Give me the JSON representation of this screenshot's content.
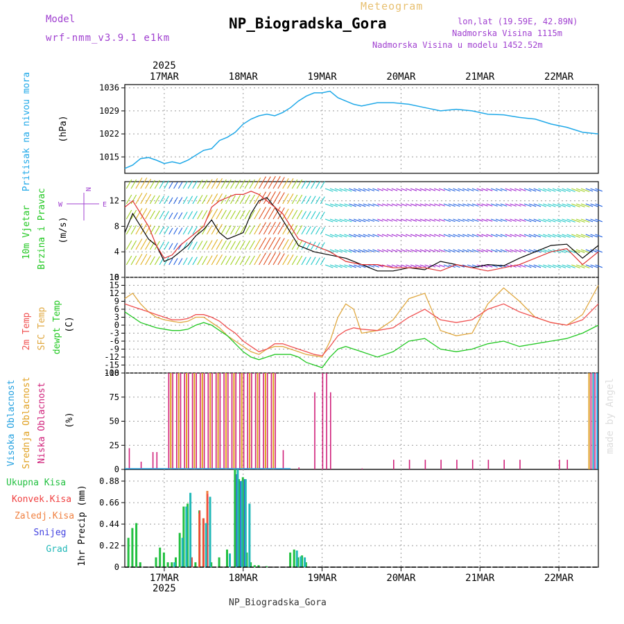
{
  "header": {
    "subtitle": "Meteogram",
    "title": "NP_Biogradska_Gora",
    "model_label": "Model",
    "model_name": "wrf-nmm_v3.9.1 e1km",
    "coords": "lon,lat (19.59E, 42.89N)",
    "elevation": "Nadmorska Visina 1115m",
    "model_elevation": "Nadmorska Visina u modelu 1452.52m",
    "footer": "NP_Biogradska_Gora",
    "watermark": "made by Angel",
    "year": "2025",
    "dates": [
      "17MAR",
      "18MAR",
      "19MAR",
      "20MAR",
      "21MAR",
      "22MAR"
    ]
  },
  "panels": {
    "pressure": {
      "ylabel": "Pritisak na nivou mora",
      "unit": "(hPa)"
    },
    "wind": {
      "ylabel1": "10m Vjetar",
      "ylabel2": "Brzina i Pravac",
      "unit": "(m/s)",
      "compass": "N",
      "compass_e": "E",
      "compass_w": "W"
    },
    "temp": {
      "label1": "2m Temp",
      "label2": "SFC Temp",
      "label3": "dewpt Temp",
      "unit": "(C)"
    },
    "cloud": {
      "label1": "Visoka Oblacnost",
      "label2": "Srednja Oblacnost",
      "label3": "Niska Oblacnost",
      "unit": "(%)"
    },
    "precip": {
      "legend": [
        "Ukupna Kisa",
        "Konvek.Kisa",
        "Zaledj.Kisa",
        "Snijeg",
        "Grad"
      ],
      "ylabel": "1hr Precip (mm)"
    }
  },
  "colors": {
    "pressure": "#1ea8e8",
    "t2m": "#f05050",
    "sfc": "#e0a840",
    "dew": "#22c822",
    "high_cloud": "#22a0e0",
    "mid_cloud": "#e0a020",
    "low_cloud": "#d0207a",
    "total_rain": "#22c040",
    "conv_rain": "#f04040",
    "frz_rain": "#f08040",
    "snow": "#4040e0",
    "graupel": "#22b8b8",
    "speed_line": "#000000",
    "gust_line": "#e03030"
  },
  "chart_data": [
    {
      "type": "line",
      "name": "pressure",
      "x_unit": "days since 16MAR 12:00 UTC",
      "ylim": [
        1010,
        1037
      ],
      "yticks": [
        "1015",
        "1022",
        "1029",
        "1036"
      ],
      "x": [
        0,
        0.1,
        0.2,
        0.3,
        0.4,
        0.5,
        0.6,
        0.7,
        0.8,
        0.9,
        1.0,
        1.1,
        1.2,
        1.3,
        1.4,
        1.5,
        1.6,
        1.7,
        1.8,
        1.9,
        2.0,
        2.1,
        2.2,
        2.3,
        2.4,
        2.5,
        2.6,
        2.7,
        2.8,
        2.9,
        3.0,
        3.2,
        3.4,
        3.6,
        3.8,
        4.0,
        4.2,
        4.4,
        4.6,
        4.8,
        5.0,
        5.2,
        5.4,
        5.6,
        5.8,
        6.0
      ],
      "values": [
        1011.5,
        1012.5,
        1014.5,
        1014.8,
        1014,
        1013,
        1013.5,
        1013,
        1014,
        1015.5,
        1017,
        1017.5,
        1020,
        1021,
        1022.5,
        1025,
        1026.5,
        1027.5,
        1028,
        1027.5,
        1028.5,
        1030,
        1032,
        1033.5,
        1034.5,
        1034.5,
        1035,
        1033,
        1032,
        1031,
        1030.5,
        1031.5,
        1031.5,
        1031,
        1030,
        1029,
        1029.5,
        1029,
        1028,
        1027.8,
        1027,
        1026.5,
        1025,
        1024,
        1022.5,
        1022
      ]
    },
    {
      "type": "line",
      "name": "wind",
      "ylim": [
        0,
        15
      ],
      "yticks": [
        "0",
        "4",
        "8",
        "12"
      ],
      "series": [
        {
          "name": "speed",
          "x": [
            0,
            0.1,
            0.2,
            0.3,
            0.4,
            0.5,
            0.6,
            0.7,
            0.8,
            0.9,
            1.0,
            1.1,
            1.2,
            1.3,
            1.4,
            1.5,
            1.6,
            1.7,
            1.8,
            1.9,
            2.0,
            2.1,
            2.2,
            2.4,
            2.6,
            2.8,
            3.0,
            3.2,
            3.4,
            3.6,
            3.8,
            4.0,
            4.2,
            4.4,
            4.6,
            4.8,
            5.0,
            5.2,
            5.4,
            5.6,
            5.8,
            6.0
          ],
          "values": [
            7,
            10,
            8,
            6,
            5,
            2.5,
            3,
            4,
            5,
            6.5,
            7.5,
            9,
            7,
            6,
            6.5,
            7,
            10,
            12,
            12.5,
            11,
            9,
            7,
            5,
            4,
            3.5,
            3,
            2,
            1,
            1,
            1.5,
            1.2,
            2.5,
            2,
            1.5,
            2,
            1.8,
            3,
            4,
            5,
            5.2,
            3,
            5
          ]
        },
        {
          "name": "gust",
          "x": [
            0,
            0.1,
            0.2,
            0.3,
            0.4,
            0.5,
            0.6,
            0.7,
            0.8,
            0.9,
            1.0,
            1.1,
            1.2,
            1.3,
            1.4,
            1.5,
            1.6,
            1.7,
            1.8,
            1.9,
            2.0,
            2.1,
            2.2,
            2.4,
            2.6,
            2.8,
            3.0,
            3.2,
            3.4,
            3.6,
            3.8,
            4.0,
            4.2,
            4.4,
            4.6,
            4.8,
            5.0,
            5.2,
            5.4,
            5.6,
            5.8,
            6.0
          ],
          "values": [
            11,
            12,
            10,
            8,
            5,
            3,
            3.5,
            5,
            6,
            7,
            8,
            11,
            12,
            12.5,
            13,
            13,
            13.5,
            13,
            12,
            11,
            10,
            8,
            6,
            5,
            4,
            2.5,
            2,
            2,
            1.5,
            1.5,
            1.5,
            1,
            2,
            1.5,
            1,
            1.5,
            2,
            3,
            4,
            4.5,
            2,
            4
          ]
        }
      ]
    },
    {
      "type": "line",
      "name": "temperature",
      "ylim": [
        -18,
        18
      ],
      "yticks": [
        "-18",
        "-15",
        "-12",
        "-9",
        "-6",
        "-3",
        "0",
        "3",
        "6",
        "9",
        "12",
        "15",
        "18"
      ],
      "series": [
        {
          "name": "t2m",
          "x": [
            0,
            0.1,
            0.2,
            0.3,
            0.4,
            0.5,
            0.6,
            0.7,
            0.8,
            0.9,
            1.0,
            1.1,
            1.2,
            1.3,
            1.4,
            1.5,
            1.6,
            1.7,
            1.8,
            1.9,
            2.0,
            2.1,
            2.2,
            2.3,
            2.4,
            2.5,
            2.6,
            2.7,
            2.8,
            2.9,
            3.0,
            3.2,
            3.4,
            3.6,
            3.8,
            4.0,
            4.2,
            4.4,
            4.6,
            4.8,
            5.0,
            5.2,
            5.4,
            5.6,
            5.8,
            6.0
          ],
          "values": [
            8,
            7,
            6,
            5,
            4,
            3,
            2,
            2,
            2.5,
            4,
            4,
            3,
            1.5,
            -1,
            -3,
            -6,
            -8,
            -10,
            -9,
            -7,
            -7,
            -8,
            -9,
            -10,
            -11,
            -11.5,
            -8,
            -4,
            -2,
            -1,
            -1.5,
            -2,
            -1,
            3,
            6,
            2,
            1,
            2,
            6,
            8,
            5,
            3,
            1,
            0,
            2,
            8
          ]
        },
        {
          "name": "sfc",
          "x": [
            0,
            0.1,
            0.2,
            0.3,
            0.4,
            0.5,
            0.6,
            0.7,
            0.8,
            0.9,
            1.0,
            1.1,
            1.2,
            1.3,
            1.4,
            1.5,
            1.6,
            1.7,
            1.8,
            1.9,
            2.0,
            2.1,
            2.2,
            2.3,
            2.4,
            2.5,
            2.6,
            2.7,
            2.8,
            2.9,
            3.0,
            3.2,
            3.4,
            3.6,
            3.8,
            4.0,
            4.2,
            4.4,
            4.6,
            4.8,
            5.0,
            5.2,
            5.4,
            5.6,
            5.8,
            6.0
          ],
          "values": [
            10,
            12,
            8,
            5,
            3,
            2,
            1.5,
            1,
            1.5,
            3,
            3,
            1,
            -1,
            -4,
            -6,
            -8,
            -10,
            -11,
            -9,
            -8,
            -8,
            -9,
            -10,
            -11,
            -11.5,
            -12,
            -6,
            3,
            8,
            6,
            -3,
            -2,
            2,
            10,
            12,
            -2,
            -4,
            -3,
            8,
            14,
            9,
            3,
            1,
            0,
            4,
            15
          ]
        },
        {
          "name": "dewpoint",
          "x": [
            0,
            0.1,
            0.2,
            0.3,
            0.4,
            0.5,
            0.6,
            0.7,
            0.8,
            0.9,
            1.0,
            1.1,
            1.2,
            1.3,
            1.4,
            1.5,
            1.6,
            1.7,
            1.8,
            1.9,
            2.0,
            2.1,
            2.2,
            2.3,
            2.4,
            2.5,
            2.6,
            2.7,
            2.8,
            2.9,
            3.0,
            3.2,
            3.4,
            3.6,
            3.8,
            4.0,
            4.2,
            4.4,
            4.6,
            4.8,
            5.0,
            5.2,
            5.4,
            5.6,
            5.8,
            6.0
          ],
          "values": [
            5,
            3,
            1,
            0,
            -1,
            -1.5,
            -2,
            -2,
            -1.5,
            0,
            1,
            0,
            -2,
            -4,
            -7,
            -10,
            -12,
            -13,
            -12,
            -11,
            -11,
            -11,
            -12,
            -14,
            -15,
            -16,
            -12,
            -9,
            -8,
            -9,
            -10,
            -12,
            -10,
            -6,
            -5,
            -9,
            -10,
            -9,
            -7,
            -6,
            -8,
            -7,
            -6,
            -5,
            -3,
            0
          ]
        }
      ]
    },
    {
      "type": "bar",
      "name": "cloud_cover",
      "ylim": [
        0,
        100
      ],
      "yticks": [
        "0",
        "25",
        "50",
        "75",
        "100"
      ],
      "series": [
        {
          "name": "low",
          "x": [
            0.05,
            0.2,
            0.35,
            0.4,
            0.55,
            0.6,
            0.65,
            0.7,
            0.75,
            0.8,
            0.85,
            0.9,
            0.95,
            1.0,
            1.05,
            1.1,
            1.15,
            1.2,
            1.25,
            1.3,
            1.35,
            1.4,
            1.45,
            1.5,
            1.55,
            1.6,
            1.65,
            1.7,
            1.75,
            1.8,
            1.85,
            1.9,
            2.0,
            2.2,
            2.4,
            2.5,
            2.55,
            2.6,
            3.0,
            3.4,
            3.6,
            3.8,
            4.0,
            4.2,
            4.4,
            4.6,
            4.8,
            5.0,
            5.5,
            5.6,
            5.9,
            5.95
          ],
          "values": [
            22,
            8,
            18,
            18,
            100,
            100,
            100,
            100,
            100,
            100,
            100,
            100,
            100,
            100,
            100,
            100,
            100,
            100,
            100,
            100,
            100,
            100,
            100,
            100,
            100,
            100,
            100,
            100,
            100,
            100,
            100,
            100,
            20,
            2,
            80,
            100,
            100,
            80,
            1,
            10,
            10,
            10,
            10,
            10,
            10,
            10,
            10,
            10,
            10,
            10,
            100,
            100
          ]
        },
        {
          "name": "mid",
          "x": [
            0.6,
            0.7,
            0.8,
            0.9,
            1.0,
            1.1,
            1.2,
            1.3,
            1.4,
            1.5,
            1.6,
            1.7,
            1.8,
            1.9,
            5.9,
            5.95
          ],
          "values": [
            100,
            100,
            100,
            100,
            100,
            100,
            100,
            100,
            100,
            100,
            100,
            100,
            100,
            100,
            100,
            100
          ]
        },
        {
          "name": "high",
          "x": [
            5.9,
            5.95
          ],
          "values": [
            100,
            100
          ]
        }
      ]
    },
    {
      "type": "bar",
      "name": "precip",
      "ylim": [
        0,
        1.0
      ],
      "yticks": [
        "0",
        "0.22",
        "0.44",
        "0.66",
        "0.88"
      ],
      "series": [
        {
          "name": "total",
          "x": [
            0.05,
            0.1,
            0.15,
            0.2,
            0.4,
            0.45,
            0.5,
            0.55,
            0.6,
            0.65,
            0.7,
            0.75,
            0.8,
            0.85,
            0.9,
            0.95,
            1.0,
            1.05,
            1.1,
            1.2,
            1.3,
            1.4,
            1.45,
            1.5,
            1.55,
            1.6,
            1.65,
            1.7,
            1.8,
            2.1,
            2.15,
            2.2,
            2.25,
            2.3
          ],
          "values": [
            0.3,
            0.4,
            0.45,
            0.05,
            0.1,
            0.2,
            0.15,
            0.05,
            0.05,
            0.1,
            0.35,
            0.62,
            0.65,
            0.1,
            0.05,
            0.58,
            0.5,
            0.77,
            0.05,
            0.1,
            0.18,
            1.0,
            0.9,
            0.92,
            0.15,
            0.05,
            0.02,
            0.02,
            0.01,
            0.15,
            0.18,
            0.1,
            0.12,
            0.05
          ]
        },
        {
          "name": "convective",
          "x": [
            0.85,
            0.95,
            1.0,
            1.05
          ],
          "values": [
            0.1,
            0.58,
            0.5,
            0.75
          ]
        },
        {
          "name": "freezing",
          "x": [
            0.95,
            1.0,
            1.05
          ],
          "values": [
            0.55,
            0.5,
            0.78
          ]
        },
        {
          "name": "snow",
          "x": [
            1.4,
            1.45,
            1.5
          ],
          "values": [
            0.95,
            0.88,
            0.9
          ]
        },
        {
          "name": "graupel",
          "x": [
            0.6,
            0.7,
            0.75,
            0.8,
            1.0,
            1.05,
            1.3,
            1.4,
            1.45,
            1.5,
            1.55,
            2.15,
            2.2,
            2.25
          ],
          "values": [
            0.05,
            0.3,
            0.62,
            0.76,
            0.45,
            0.72,
            0.14,
            1.0,
            0.88,
            0.9,
            0.65,
            0.17,
            0.11,
            0.1
          ]
        }
      ]
    }
  ]
}
